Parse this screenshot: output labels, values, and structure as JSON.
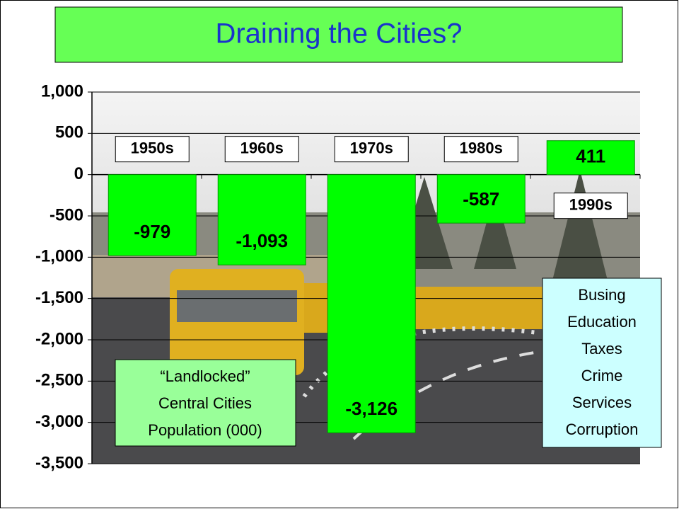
{
  "chart_data": {
    "type": "bar",
    "title": "Draining the Cities?",
    "categories": [
      "1950s",
      "1960s",
      "1970s",
      "1980s",
      "1990s"
    ],
    "values": [
      -979,
      -1093,
      -3126,
      -587,
      411
    ],
    "value_labels": [
      "-979",
      "-1,093",
      "-3,126",
      "-587",
      "411"
    ],
    "color": "#00ff00",
    "ylim": [
      -3500,
      1000
    ],
    "yticks": [
      {
        "value": 1000,
        "label": "1,000"
      },
      500,
      0,
      -500,
      {
        "value": -1000,
        "label": "-1,000"
      },
      {
        "value": -1500,
        "label": "-1,500"
      },
      {
        "value": -2000,
        "label": "-2,000"
      },
      {
        "value": -2500,
        "label": "-2,500"
      },
      {
        "value": -3000,
        "label": "-3,000"
      },
      {
        "value": -3500,
        "label": "-3,500"
      }
    ],
    "grid": true,
    "annotations": [
      {
        "lines": [
          "“Landlocked”",
          "Central Cities",
          "Population (000)"
        ]
      },
      {
        "lines": [
          "Busing",
          "Education",
          "Taxes",
          "Crime",
          "Services",
          "Corruption"
        ]
      }
    ]
  }
}
